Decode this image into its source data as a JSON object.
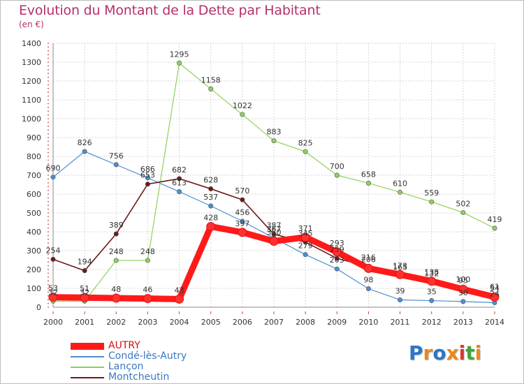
{
  "title": "Evolution du Montant de la Dette par Habitant",
  "subtitle": "(en €)",
  "logo": {
    "text": "Proxiti",
    "colors": [
      "#2a77c9",
      "#e8891c",
      "#2a77c9",
      "#e8891c",
      "#d63a2f",
      "#3fa53a",
      "#e8891c"
    ]
  },
  "chart_data": {
    "type": "line",
    "x": [
      "2000",
      "2001",
      "2002",
      "2003",
      "2004",
      "2005",
      "2006",
      "2007",
      "2008",
      "2009",
      "2010",
      "2011",
      "2012",
      "2013",
      "2014"
    ],
    "ylim": [
      0,
      1400
    ],
    "yticks": [
      "0",
      "100",
      "200",
      "300",
      "400",
      "500",
      "600",
      "700",
      "800",
      "900",
      "1000",
      "1100",
      "1200",
      "1300",
      "1400"
    ],
    "grid": true,
    "legend_position": "bottom-left",
    "series": [
      {
        "name": "Condé-lès-Autry",
        "color": "#4a8fd0",
        "values": [
          690,
          826,
          756,
          686,
          613,
          537,
          456,
          367,
          279,
          203,
          98,
          39,
          35,
          30,
          24
        ],
        "labels": [
          "690",
          "826",
          "756",
          "686",
          "613",
          "537",
          "456",
          "367",
          "279",
          "203",
          "98",
          "39",
          "35",
          "30",
          "24"
        ]
      },
      {
        "name": "Lançon",
        "color": "#8fd05a",
        "values": [
          32,
          32,
          248,
          248,
          1295,
          1158,
          1022,
          883,
          825,
          700,
          658,
          610,
          559,
          502,
          419
        ],
        "labels": [
          "32",
          "32",
          "248",
          "248",
          "1295",
          "1158",
          "1022",
          "883",
          "825",
          "700",
          "658",
          "610",
          "559",
          "502",
          "419"
        ]
      },
      {
        "name": "Montcheutin",
        "color": "#6b1a1a",
        "values": [
          254,
          194,
          389,
          653,
          682,
          628,
          570,
          387,
          345,
          259,
          216,
          165,
          132,
          100,
          61
        ],
        "labels": [
          "254",
          "194",
          "389",
          "653",
          "682",
          "628",
          "570",
          "387",
          "345",
          "259",
          "216",
          "165",
          "132",
          "100",
          "61"
        ]
      },
      {
        "name": "AUTRY",
        "color": "#ff1a1a",
        "values": [
          53,
          51,
          48,
          46,
          43,
          428,
          397,
          350,
          371,
          293,
          206,
          173,
          138,
          95,
          54
        ],
        "labels": [
          "53",
          "51",
          "48",
          "46",
          "43",
          "428",
          "397",
          "350",
          "371",
          "293",
          "206",
          "173",
          "138",
          "95",
          "54"
        ]
      }
    ],
    "legend": [
      {
        "label": "AUTRY",
        "color": "#ff1a1a",
        "text_color": "#d01010"
      },
      {
        "label": "Condé-lès-Autry",
        "color": "#4a8fd0",
        "text_color": "#3a78c0"
      },
      {
        "label": "Lançon",
        "color": "#8fd05a",
        "text_color": "#3a78c0"
      },
      {
        "label": "Montcheutin",
        "color": "#6b1a1a",
        "text_color": "#3a78c0"
      }
    ]
  }
}
